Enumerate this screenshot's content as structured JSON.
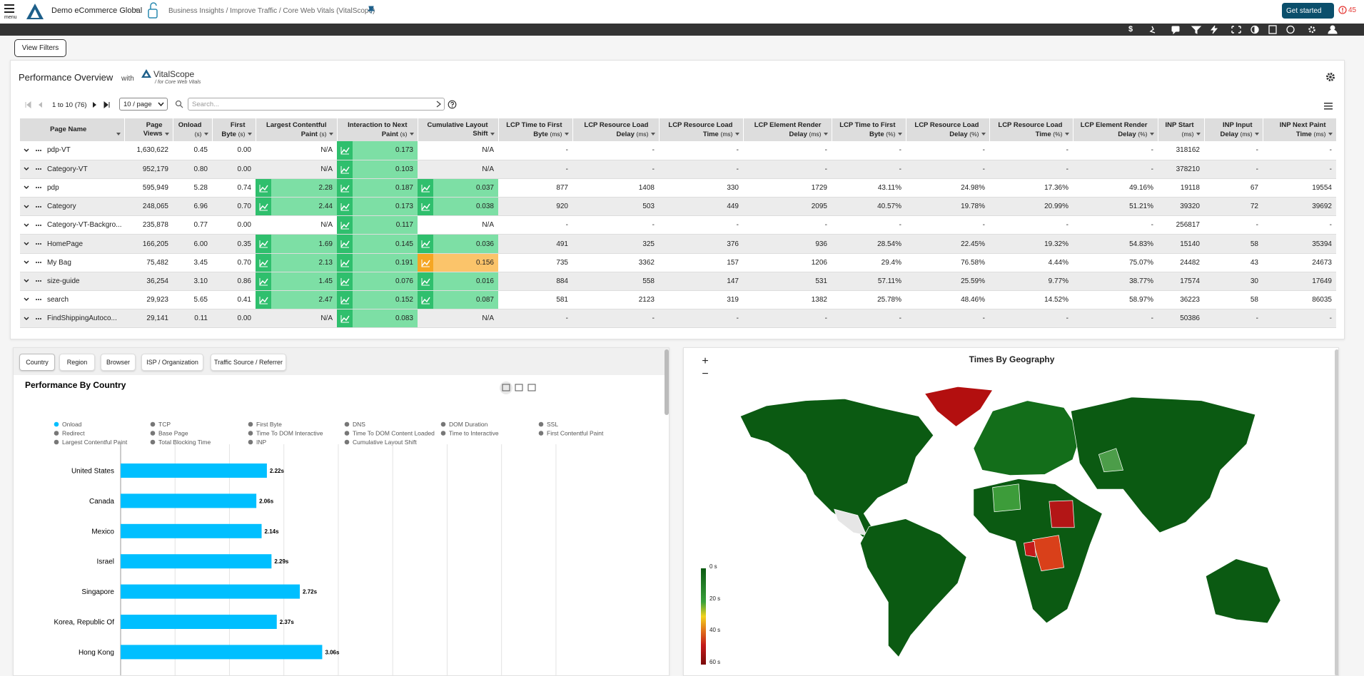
{
  "header": {
    "menu": "menu",
    "org": "Demo eCommerce Global",
    "breadcrumb": "Business Insights / Improve Traffic / Core Web Vitals (VitalScope)",
    "get_started": "Get started",
    "alerts": "45",
    "currency": "$"
  },
  "view_filters": "View Filters",
  "overview": {
    "title": "Performance Overview",
    "with": "with",
    "brand": "VitalScope",
    "brand_sub": "/ for Core Web Vitals",
    "range": "1 to 10 (76)",
    "page_size": "10 / page",
    "search": "Search..."
  },
  "table": {
    "columns": [
      {
        "name": "Page Name"
      },
      {
        "name": "Page Views"
      },
      {
        "name": "Onload",
        "unit": "(s)"
      },
      {
        "name": "First Byte",
        "unit": "(s)"
      },
      {
        "name": "Largest Contentful Paint",
        "unit": "(s)"
      },
      {
        "name": "Interaction to Next Paint",
        "unit": "(s)"
      },
      {
        "name": "Cumulative Layout Shift"
      },
      {
        "name": "LCP Time to First Byte",
        "unit": "(ms)"
      },
      {
        "name": "LCP Resource Load Delay",
        "unit": "(ms)"
      },
      {
        "name": "LCP Resource Load Time",
        "unit": "(ms)"
      },
      {
        "name": "LCP Element Render Delay",
        "unit": "(ms)"
      },
      {
        "name": "LCP Time to First Byte",
        "unit": "(%)"
      },
      {
        "name": "LCP Resource Load Delay",
        "unit": "(%)"
      },
      {
        "name": "LCP Resource Load Time",
        "unit": "(%)"
      },
      {
        "name": "LCP Element Render Delay",
        "unit": "(%)"
      },
      {
        "name": "INP Start",
        "unit": "(ms)"
      },
      {
        "name": "INP Input Delay",
        "unit": "(ms)"
      },
      {
        "name": "INP Next Paint Time",
        "unit": "(ms)"
      }
    ],
    "rows": [
      [
        "pdp-VT",
        "1,630,622",
        "0.45",
        "0.00",
        "N/A",
        "0.173",
        "N/A",
        "-",
        "-",
        "-",
        "-",
        "-",
        "-",
        "-",
        "-",
        "318162",
        "-",
        "-"
      ],
      [
        "Category-VT",
        "952,179",
        "0.80",
        "0.00",
        "N/A",
        "0.103",
        "N/A",
        "-",
        "-",
        "-",
        "-",
        "-",
        "-",
        "-",
        "-",
        "378210",
        "-",
        "-"
      ],
      [
        "pdp",
        "595,949",
        "5.28",
        "0.74",
        "2.28",
        "0.187",
        "0.037",
        "877",
        "1408",
        "330",
        "1729",
        "43.11%",
        "24.98%",
        "17.36%",
        "49.16%",
        "19118",
        "67",
        "19554"
      ],
      [
        "Category",
        "248,065",
        "6.96",
        "0.70",
        "2.44",
        "0.173",
        "0.038",
        "920",
        "503",
        "449",
        "2095",
        "40.57%",
        "19.78%",
        "20.99%",
        "51.21%",
        "39320",
        "72",
        "39692"
      ],
      [
        "Category-VT-Backgro...",
        "235,878",
        "0.77",
        "0.00",
        "N/A",
        "0.117",
        "N/A",
        "-",
        "-",
        "-",
        "-",
        "-",
        "-",
        "-",
        "-",
        "256817",
        "-",
        "-"
      ],
      [
        "HomePage",
        "166,205",
        "6.00",
        "0.35",
        "1.69",
        "0.145",
        "0.036",
        "491",
        "325",
        "376",
        "936",
        "28.54%",
        "22.45%",
        "19.32%",
        "54.83%",
        "15140",
        "58",
        "35394"
      ],
      [
        "My Bag",
        "75,482",
        "3.45",
        "0.70",
        "2.13",
        "0.191",
        "0.156",
        "735",
        "3362",
        "157",
        "1206",
        "29.4%",
        "76.58%",
        "4.44%",
        "75.07%",
        "24482",
        "43",
        "24673"
      ],
      [
        "size-guide",
        "36,254",
        "3.10",
        "0.86",
        "1.45",
        "0.076",
        "0.016",
        "884",
        "558",
        "147",
        "531",
        "57.11%",
        "25.59%",
        "9.77%",
        "38.77%",
        "17574",
        "30",
        "17649"
      ],
      [
        "search",
        "29,923",
        "5.65",
        "0.41",
        "2.47",
        "0.152",
        "0.087",
        "581",
        "2123",
        "319",
        "1382",
        "25.78%",
        "48.46%",
        "14.52%",
        "58.97%",
        "36223",
        "58",
        "86035"
      ],
      [
        "FindShippingAutoco...",
        "29,141",
        "0.11",
        "0.00",
        "N/A",
        "0.083",
        "N/A",
        "-",
        "-",
        "-",
        "-",
        "-",
        "-",
        "-",
        "-",
        "50386",
        "-",
        "-"
      ]
    ]
  },
  "tabs": [
    "Country",
    "Region",
    "Browser",
    "ISP / Organization",
    "Traffic Source / Referrer"
  ],
  "country_chart": {
    "type": "bar",
    "title": "Performance By Country",
    "color": "#00bfff",
    "legend": [
      "Onload",
      "TCP",
      "First Byte",
      "DNS",
      "DOM Duration",
      "SSL",
      "Redirect",
      "Base Page",
      "Time To DOM Interactive",
      "Time To DOM Content Loaded",
      "Time to Interactive",
      "First Contentful Paint",
      "Largest Contentful Paint",
      "Total Blocking Time",
      "INP",
      "Cumulative Layout Shift"
    ],
    "categories": [
      "United States",
      "Canada",
      "Mexico",
      "Israel",
      "Singapore",
      "Korea, Republic Of",
      "Hong Kong"
    ],
    "values": [
      2.22,
      2.06,
      2.14,
      2.29,
      2.72,
      2.37,
      3.06
    ],
    "value_labels": [
      "2.22s",
      "2.06s",
      "2.14s",
      "2.29s",
      "2.72s",
      "2.37s",
      "3.06s"
    ]
  },
  "map": {
    "title": "Times By Geography",
    "zoom_in": "+",
    "zoom_out": "−",
    "scale_labels": [
      "0 s",
      "20 s",
      "40 s",
      "60 s"
    ]
  }
}
